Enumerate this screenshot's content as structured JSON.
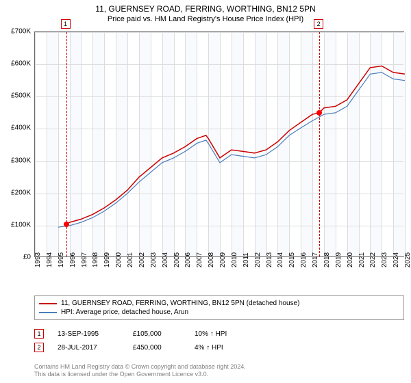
{
  "title": "11, GUERNSEY ROAD, FERRING, WORTHING, BN12 5PN",
  "subtitle": "Price paid vs. HM Land Registry's House Price Index (HPI)",
  "chart": {
    "type": "line",
    "background_color": "#ffffff",
    "grid_color": "#dcdcdc",
    "shade_color": "#f8fafd",
    "ylim": [
      0,
      700000
    ],
    "ytick_step": 100000,
    "y_labels": [
      "£0",
      "£100K",
      "£200K",
      "£300K",
      "£400K",
      "£500K",
      "£600K",
      "£700K"
    ],
    "xlim": [
      1993,
      2025
    ],
    "x_labels": [
      "1993",
      "1994",
      "1995",
      "1996",
      "1997",
      "1998",
      "1999",
      "2000",
      "2001",
      "2002",
      "2003",
      "2004",
      "2005",
      "2006",
      "2007",
      "2008",
      "2009",
      "2010",
      "2011",
      "2012",
      "2013",
      "2014",
      "2015",
      "2016",
      "2017",
      "2018",
      "2019",
      "2020",
      "2021",
      "2022",
      "2023",
      "2024",
      "2025"
    ],
    "label_fontsize": 10,
    "series": [
      {
        "name": "11, GUERNSEY ROAD, FERRING, WORTHING, BN12 5PN (detached house)",
        "color": "#cc0000",
        "width": 1.5,
        "x": [
          1995.7,
          1996,
          1997,
          1998,
          1999,
          2000,
          2001,
          2002,
          2003,
          2004,
          2005,
          2006,
          2007,
          2007.8,
          2008,
          2009,
          2010,
          2011,
          2012,
          2013,
          2014,
          2015,
          2016,
          2017,
          2017.6,
          2018,
          2019,
          2020,
          2021,
          2022,
          2023,
          2024,
          2025
        ],
        "y": [
          105000,
          110000,
          120000,
          135000,
          155000,
          180000,
          210000,
          250000,
          280000,
          310000,
          325000,
          345000,
          370000,
          380000,
          370000,
          310000,
          335000,
          330000,
          325000,
          335000,
          360000,
          395000,
          420000,
          445000,
          450000,
          465000,
          470000,
          490000,
          540000,
          590000,
          595000,
          575000,
          570000
        ]
      },
      {
        "name": "HPI: Average price, detached house, Arun",
        "color": "#4a7ebb",
        "width": 1.2,
        "x": [
          1995,
          1996,
          1997,
          1998,
          1999,
          2000,
          2001,
          2002,
          2003,
          2004,
          2005,
          2006,
          2007,
          2007.8,
          2008,
          2009,
          2010,
          2011,
          2012,
          2013,
          2014,
          2015,
          2016,
          2017,
          2018,
          2019,
          2020,
          2021,
          2022,
          2023,
          2024,
          2025
        ],
        "y": [
          95000,
          100000,
          110000,
          125000,
          145000,
          170000,
          200000,
          235000,
          265000,
          295000,
          310000,
          330000,
          355000,
          365000,
          355000,
          295000,
          320000,
          315000,
          310000,
          320000,
          345000,
          380000,
          403000,
          425000,
          445000,
          450000,
          470000,
          520000,
          570000,
          575000,
          555000,
          550000
        ]
      }
    ],
    "markers": [
      {
        "num": "1",
        "x": 1995.7,
        "y": 105000
      },
      {
        "num": "2",
        "x": 2017.6,
        "y": 450000
      }
    ]
  },
  "legend": {
    "items": [
      {
        "color": "#cc0000",
        "label": "11, GUERNSEY ROAD, FERRING, WORTHING, BN12 5PN (detached house)"
      },
      {
        "color": "#4a7ebb",
        "label": "HPI: Average price, detached house, Arun"
      }
    ]
  },
  "events": [
    {
      "num": "1",
      "date": "13-SEP-1995",
      "price": "£105,000",
      "hpi": "10% ↑ HPI"
    },
    {
      "num": "2",
      "date": "28-JUL-2017",
      "price": "£450,000",
      "hpi": "4% ↑ HPI"
    }
  ],
  "footer": {
    "line1": "Contains HM Land Registry data © Crown copyright and database right 2024.",
    "line2": "This data is licensed under the Open Government Licence v3.0."
  }
}
